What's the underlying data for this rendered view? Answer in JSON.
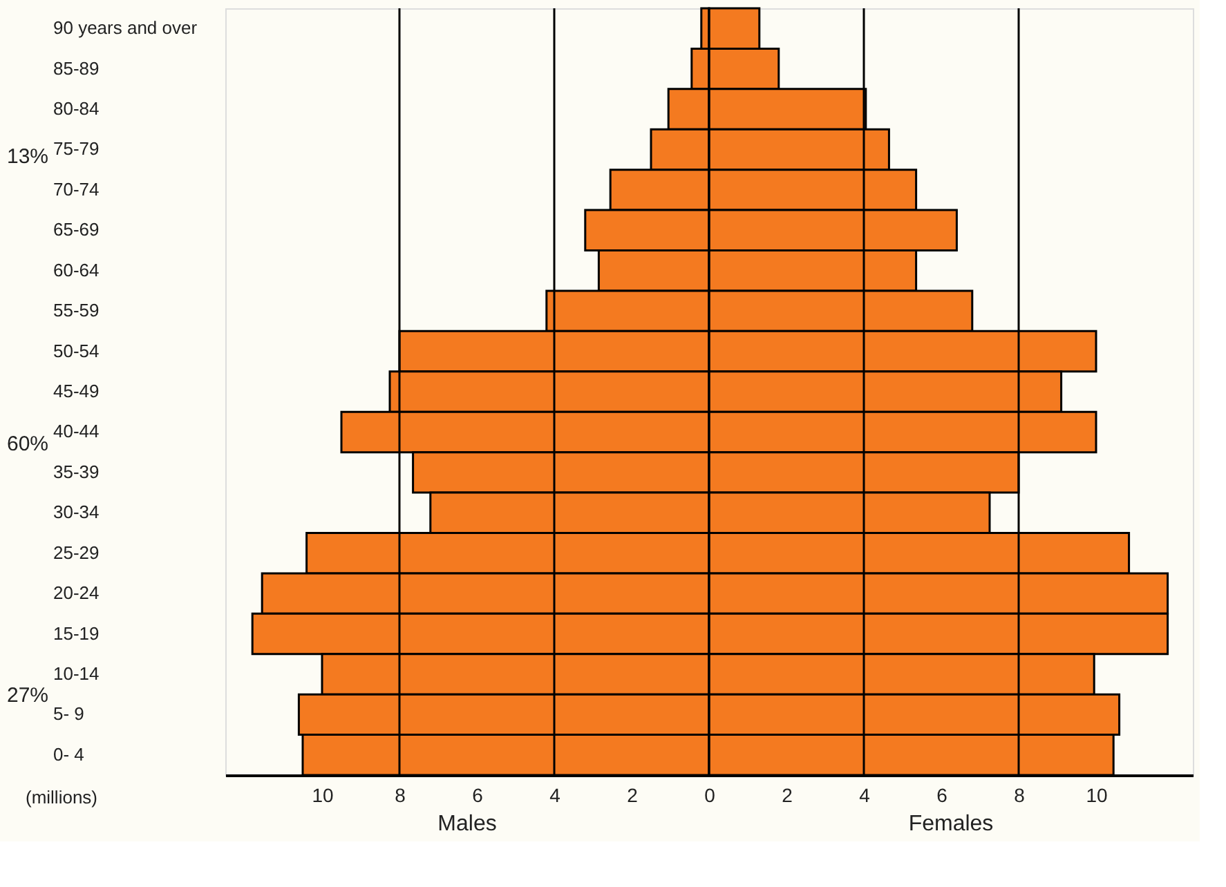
{
  "chart_data": {
    "type": "bar",
    "orientation": "horizontal",
    "stacked": true,
    "xlabel": "(millions)",
    "categories": [
      "90 years and over",
      "85-89",
      "80-84",
      "75-79",
      "70-74",
      "65-69",
      "60-64",
      "55-59",
      "50-54",
      "45-49",
      "40-44",
      "35-39",
      "30-34",
      "25-29",
      "20-24",
      "15-19",
      "10-14",
      "5- 9",
      "0- 4"
    ],
    "series": [
      {
        "name": "Males",
        "color": "#f47a20",
        "values": [
          -0.2,
          -0.45,
          -1.05,
          -1.5,
          -2.55,
          -3.2,
          -2.85,
          -4.2,
          -8.0,
          -8.25,
          -9.5,
          -7.65,
          -7.2,
          -10.4,
          -11.55,
          -11.8,
          -10.0,
          -10.6,
          -10.5
        ]
      },
      {
        "name": "Females",
        "color": "#f47a20",
        "values": [
          1.3,
          1.8,
          4.05,
          4.65,
          5.35,
          6.4,
          5.35,
          6.8,
          10.0,
          9.1,
          10.0,
          8.0,
          7.25,
          10.85,
          11.85,
          11.85,
          9.95,
          10.6,
          10.45
        ]
      }
    ],
    "xlim": [
      -12.5,
      12.5
    ],
    "xticks": [
      {
        "value": -10,
        "label": "10"
      },
      {
        "value": -8,
        "label": "8"
      },
      {
        "value": -6,
        "label": "6"
      },
      {
        "value": -4,
        "label": "4"
      },
      {
        "value": -2,
        "label": "2"
      },
      0,
      2,
      4,
      6,
      8,
      10
    ],
    "ref_lines": [
      {
        "axis": "x",
        "value": -8
      },
      {
        "axis": "x",
        "value": -4
      },
      {
        "axis": "x",
        "value": 0
      },
      {
        "axis": "x",
        "value": 4
      },
      {
        "axis": "x",
        "value": 8
      }
    ],
    "annotations": [
      "13%",
      "60%",
      "27%"
    ],
    "grid": false,
    "legend": false
  }
}
